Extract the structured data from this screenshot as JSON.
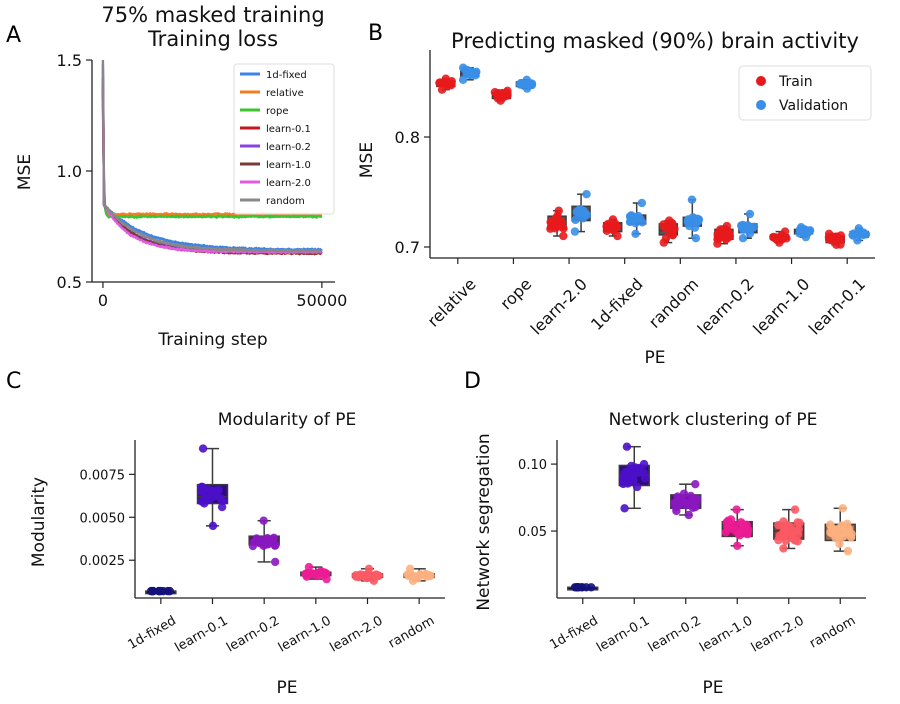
{
  "figure": {
    "panel_letters": [
      "A",
      "B",
      "C",
      "D"
    ]
  },
  "chart_data": [
    {
      "id": "A",
      "type": "line",
      "supertitle": "75% masked training",
      "title": "Training loss",
      "xlabel": "Training step",
      "ylabel": "MSE",
      "xlim": [
        -2500,
        53000
      ],
      "ylim": [
        0.5,
        1.5
      ],
      "xticks": [
        0,
        50000
      ],
      "xtick_labels": [
        "0",
        "50000"
      ],
      "yticks": [
        0.5,
        1.0,
        1.5
      ],
      "ytick_labels": [
        "0.5",
        "1.0",
        "1.5"
      ],
      "legend_position": "top-right",
      "series": [
        {
          "name": "1d-fixed",
          "color": "#3b83e6",
          "start": 1.48,
          "plateau": 0.645,
          "tau": 9000
        },
        {
          "name": "relative",
          "color": "#f57c20",
          "start": 1.35,
          "plateau": 0.805,
          "tau": 250
        },
        {
          "name": "rope",
          "color": "#3ec431",
          "start": 1.3,
          "plateau": 0.795,
          "tau": 250
        },
        {
          "name": "learn-0.1",
          "color": "#c8171c",
          "start": 1.42,
          "plateau": 0.63,
          "tau": 7000
        },
        {
          "name": "learn-0.2",
          "color": "#8a43e0",
          "start": 1.4,
          "plateau": 0.635,
          "tau": 7000
        },
        {
          "name": "learn-1.0",
          "color": "#7a3b36",
          "start": 1.38,
          "plateau": 0.63,
          "tau": 7000
        },
        {
          "name": "learn-2.0",
          "color": "#e25be0",
          "start": 1.45,
          "plateau": 0.635,
          "tau": 6000
        },
        {
          "name": "random",
          "color": "#888888",
          "start": 1.5,
          "plateau": 0.64,
          "tau": 8000
        }
      ]
    },
    {
      "id": "B",
      "type": "box",
      "title": "Predicting masked (90%) brain activity",
      "xlabel": "PE",
      "ylabel": "MSE",
      "ylim": [
        0.69,
        0.87
      ],
      "yticks": [
        0.7,
        0.8
      ],
      "ytick_labels": [
        "0.7",
        "0.8"
      ],
      "categories": [
        "relative",
        "rope",
        "learn-2.0",
        "1d-fixed",
        "random",
        "learn-0.2",
        "learn-1.0",
        "learn-0.1"
      ],
      "legend_position": "top-right",
      "series": [
        {
          "name": "Train",
          "color": "#e8191c",
          "median": [
            0.848,
            0.838,
            0.722,
            0.718,
            0.715,
            0.711,
            0.709,
            0.707
          ],
          "q1": [
            0.846,
            0.835,
            0.716,
            0.714,
            0.711,
            0.707,
            0.707,
            0.704
          ],
          "q3": [
            0.85,
            0.84,
            0.728,
            0.722,
            0.721,
            0.716,
            0.711,
            0.71
          ],
          "min": [
            0.843,
            0.833,
            0.71,
            0.71,
            0.704,
            0.703,
            0.704,
            0.702
          ],
          "max": [
            0.853,
            0.842,
            0.733,
            0.725,
            0.724,
            0.719,
            0.714,
            0.712
          ]
        },
        {
          "name": "Validation",
          "color": "#3a8ee8",
          "median": [
            0.858,
            0.848,
            0.731,
            0.725,
            0.723,
            0.717,
            0.714,
            0.712
          ],
          "q1": [
            0.855,
            0.846,
            0.724,
            0.721,
            0.719,
            0.713,
            0.712,
            0.709
          ],
          "q3": [
            0.86,
            0.85,
            0.737,
            0.729,
            0.727,
            0.721,
            0.716,
            0.714
          ],
          "min": [
            0.852,
            0.844,
            0.714,
            0.712,
            0.708,
            0.708,
            0.709,
            0.706
          ],
          "max": [
            0.863,
            0.852,
            0.748,
            0.74,
            0.743,
            0.73,
            0.718,
            0.717
          ]
        }
      ]
    },
    {
      "id": "C",
      "type": "box",
      "title": "Modularity of PE",
      "xlabel": "PE",
      "ylabel": "Modularity",
      "ylim": [
        0.0003,
        0.0095
      ],
      "yticks": [
        0.0025,
        0.005,
        0.0075
      ],
      "ytick_labels": [
        "0.0025",
        "0.0050",
        "0.0075"
      ],
      "categories": [
        "1d-fixed",
        "learn-0.1",
        "learn-0.2",
        "learn-1.0",
        "learn-2.0",
        "random"
      ],
      "colors": [
        "#14127a",
        "#4b10c9",
        "#8a17bf",
        "#ec1c94",
        "#fb5a64",
        "#fdb080"
      ],
      "median": [
        0.0007,
        0.0062,
        0.0036,
        0.0017,
        0.0016,
        0.0016
      ],
      "q1": [
        0.0007,
        0.0058,
        0.0034,
        0.0016,
        0.0015,
        0.0015
      ],
      "q3": [
        0.0007,
        0.0069,
        0.0039,
        0.0018,
        0.0017,
        0.0017
      ],
      "min": [
        0.0007,
        0.0045,
        0.0024,
        0.0014,
        0.0013,
        0.0013
      ],
      "max": [
        0.0007,
        0.009,
        0.0048,
        0.0021,
        0.002,
        0.002
      ]
    },
    {
      "id": "D",
      "type": "box",
      "title": "Network clustering of PE",
      "xlabel": "PE",
      "ylabel": "Network segregation",
      "ylim": [
        0.0,
        0.118
      ],
      "yticks": [
        0.05,
        0.1
      ],
      "ytick_labels": [
        "0.05",
        "0.10"
      ],
      "categories": [
        "1d-fixed",
        "learn-0.1",
        "learn-0.2",
        "learn-1.0",
        "learn-2.0",
        "random"
      ],
      "colors": [
        "#14127a",
        "#4b10c9",
        "#8a17bf",
        "#ec1c94",
        "#fb5a64",
        "#fdb080"
      ],
      "median": [
        0.008,
        0.092,
        0.072,
        0.052,
        0.05,
        0.049
      ],
      "q1": [
        0.008,
        0.084,
        0.067,
        0.046,
        0.044,
        0.043
      ],
      "q3": [
        0.008,
        0.099,
        0.077,
        0.057,
        0.056,
        0.055
      ],
      "min": [
        0.008,
        0.067,
        0.062,
        0.039,
        0.037,
        0.035
      ],
      "max": [
        0.008,
        0.113,
        0.085,
        0.066,
        0.066,
        0.067
      ]
    }
  ]
}
